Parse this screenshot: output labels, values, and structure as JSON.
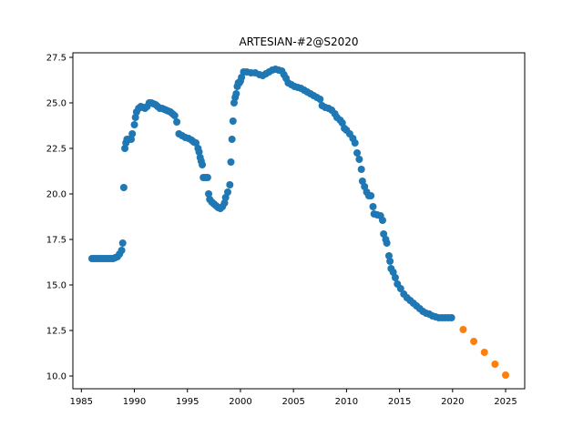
{
  "chart_data": {
    "type": "scatter",
    "title": "ARTESIAN-#2@S2020",
    "xlabel": "",
    "ylabel": "",
    "xlim": [
      1984.2,
      2026.8
    ],
    "ylim": [
      9.3,
      27.75
    ],
    "xticks": [
      1985,
      1990,
      1995,
      2000,
      2005,
      2010,
      2015,
      2020,
      2025
    ],
    "xtick_labels": [
      "1985",
      "1990",
      "1995",
      "2000",
      "2005",
      "2010",
      "2015",
      "2020",
      "2025"
    ],
    "yticks": [
      10.0,
      12.5,
      15.0,
      17.5,
      20.0,
      22.5,
      25.0,
      27.5
    ],
    "ytick_labels": [
      "10.0",
      "12.5",
      "15.0",
      "17.5",
      "20.0",
      "22.5",
      "25.0",
      "27.5"
    ],
    "grid": false,
    "series": [
      {
        "color": "#1f77b4",
        "points": [
          [
            1986.0,
            16.45
          ],
          [
            1986.2,
            16.45
          ],
          [
            1986.4,
            16.45
          ],
          [
            1986.6,
            16.45
          ],
          [
            1986.8,
            16.45
          ],
          [
            1987.0,
            16.45
          ],
          [
            1987.2,
            16.45
          ],
          [
            1987.4,
            16.45
          ],
          [
            1987.6,
            16.45
          ],
          [
            1987.8,
            16.45
          ],
          [
            1988.0,
            16.45
          ],
          [
            1988.2,
            16.5
          ],
          [
            1988.4,
            16.55
          ],
          [
            1988.6,
            16.7
          ],
          [
            1988.8,
            16.9
          ],
          [
            1988.9,
            17.3
          ],
          [
            1989.0,
            20.35
          ],
          [
            1989.1,
            22.5
          ],
          [
            1989.2,
            22.8
          ],
          [
            1989.3,
            23.0
          ],
          [
            1989.5,
            23.0
          ],
          [
            1989.7,
            23.0
          ],
          [
            1989.8,
            23.3
          ],
          [
            1990.0,
            23.8
          ],
          [
            1990.1,
            24.2
          ],
          [
            1990.2,
            24.5
          ],
          [
            1990.4,
            24.7
          ],
          [
            1990.6,
            24.8
          ],
          [
            1990.8,
            24.75
          ],
          [
            1991.0,
            24.7
          ],
          [
            1991.2,
            24.8
          ],
          [
            1991.4,
            25.0
          ],
          [
            1991.6,
            25.0
          ],
          [
            1991.8,
            24.95
          ],
          [
            1992.0,
            24.9
          ],
          [
            1992.2,
            24.8
          ],
          [
            1992.4,
            24.7
          ],
          [
            1992.6,
            24.7
          ],
          [
            1992.8,
            24.65
          ],
          [
            1993.0,
            24.6
          ],
          [
            1993.2,
            24.55
          ],
          [
            1993.4,
            24.5
          ],
          [
            1993.6,
            24.4
          ],
          [
            1993.8,
            24.3
          ],
          [
            1994.0,
            23.95
          ],
          [
            1994.2,
            23.3
          ],
          [
            1994.5,
            23.2
          ],
          [
            1994.8,
            23.1
          ],
          [
            1995.1,
            23.05
          ],
          [
            1995.4,
            22.95
          ],
          [
            1995.6,
            22.85
          ],
          [
            1995.8,
            22.8
          ],
          [
            1996.0,
            22.5
          ],
          [
            1996.1,
            22.3
          ],
          [
            1996.2,
            22.0
          ],
          [
            1996.3,
            21.8
          ],
          [
            1996.4,
            21.6
          ],
          [
            1996.5,
            20.9
          ],
          [
            1996.7,
            20.9
          ],
          [
            1996.9,
            20.9
          ],
          [
            1997.0,
            20.0
          ],
          [
            1997.1,
            19.7
          ],
          [
            1997.3,
            19.55
          ],
          [
            1997.5,
            19.45
          ],
          [
            1997.7,
            19.35
          ],
          [
            1997.9,
            19.25
          ],
          [
            1998.1,
            19.2
          ],
          [
            1998.3,
            19.3
          ],
          [
            1998.5,
            19.5
          ],
          [
            1998.6,
            19.8
          ],
          [
            1998.8,
            20.1
          ],
          [
            1999.0,
            20.5
          ],
          [
            1999.1,
            21.75
          ],
          [
            1999.2,
            23.0
          ],
          [
            1999.3,
            24.0
          ],
          [
            1999.4,
            25.0
          ],
          [
            1999.5,
            25.3
          ],
          [
            1999.6,
            25.5
          ],
          [
            1999.7,
            25.9
          ],
          [
            1999.8,
            26.1
          ],
          [
            1999.9,
            26.1
          ],
          [
            2000.0,
            26.2
          ],
          [
            2000.1,
            26.4
          ],
          [
            2000.3,
            26.7
          ],
          [
            2000.6,
            26.7
          ],
          [
            2001.0,
            26.65
          ],
          [
            2001.4,
            26.65
          ],
          [
            2001.8,
            26.55
          ],
          [
            2002.1,
            26.5
          ],
          [
            2002.4,
            26.6
          ],
          [
            2002.7,
            26.7
          ],
          [
            2003.0,
            26.8
          ],
          [
            2003.3,
            26.85
          ],
          [
            2003.6,
            26.8
          ],
          [
            2003.9,
            26.75
          ],
          [
            2004.1,
            26.55
          ],
          [
            2004.3,
            26.35
          ],
          [
            2004.5,
            26.1
          ],
          [
            2004.8,
            26.0
          ],
          [
            2005.1,
            25.9
          ],
          [
            2005.4,
            25.85
          ],
          [
            2005.7,
            25.8
          ],
          [
            2006.0,
            25.7
          ],
          [
            2006.3,
            25.6
          ],
          [
            2006.6,
            25.5
          ],
          [
            2006.9,
            25.4
          ],
          [
            2007.2,
            25.3
          ],
          [
            2007.5,
            25.2
          ],
          [
            2007.7,
            24.85
          ],
          [
            2008.0,
            24.75
          ],
          [
            2008.3,
            24.7
          ],
          [
            2008.6,
            24.6
          ],
          [
            2008.9,
            24.4
          ],
          [
            2009.1,
            24.2
          ],
          [
            2009.4,
            24.05
          ],
          [
            2009.6,
            23.9
          ],
          [
            2009.8,
            23.6
          ],
          [
            2010.0,
            23.5
          ],
          [
            2010.3,
            23.3
          ],
          [
            2010.6,
            23.05
          ],
          [
            2010.8,
            22.8
          ],
          [
            2011.0,
            22.25
          ],
          [
            2011.2,
            21.9
          ],
          [
            2011.4,
            21.35
          ],
          [
            2011.5,
            20.7
          ],
          [
            2011.7,
            20.4
          ],
          [
            2011.9,
            20.1
          ],
          [
            2012.1,
            19.9
          ],
          [
            2012.3,
            19.9
          ],
          [
            2012.5,
            19.3
          ],
          [
            2012.6,
            18.9
          ],
          [
            2012.9,
            18.85
          ],
          [
            2013.2,
            18.8
          ],
          [
            2013.4,
            18.55
          ],
          [
            2013.5,
            17.8
          ],
          [
            2013.7,
            17.5
          ],
          [
            2013.8,
            17.3
          ],
          [
            2014.0,
            16.6
          ],
          [
            2014.1,
            16.3
          ],
          [
            2014.2,
            15.9
          ],
          [
            2014.4,
            15.7
          ],
          [
            2014.6,
            15.4
          ],
          [
            2014.8,
            15.05
          ],
          [
            2015.1,
            14.8
          ],
          [
            2015.4,
            14.5
          ],
          [
            2015.7,
            14.3
          ],
          [
            2016.0,
            14.15
          ],
          [
            2016.3,
            14.0
          ],
          [
            2016.6,
            13.85
          ],
          [
            2016.9,
            13.7
          ],
          [
            2017.2,
            13.55
          ],
          [
            2017.5,
            13.45
          ],
          [
            2017.8,
            13.4
          ],
          [
            2018.1,
            13.3
          ],
          [
            2018.4,
            13.25
          ],
          [
            2018.7,
            13.2
          ],
          [
            2019.0,
            13.2
          ],
          [
            2019.3,
            13.2
          ],
          [
            2019.6,
            13.2
          ],
          [
            2019.9,
            13.2
          ]
        ]
      },
      {
        "color": "#ff7f0e",
        "points": [
          [
            2021.0,
            12.55
          ],
          [
            2022.0,
            11.9
          ],
          [
            2023.0,
            11.3
          ],
          [
            2024.0,
            10.65
          ],
          [
            2025.0,
            10.05
          ]
        ]
      }
    ]
  }
}
